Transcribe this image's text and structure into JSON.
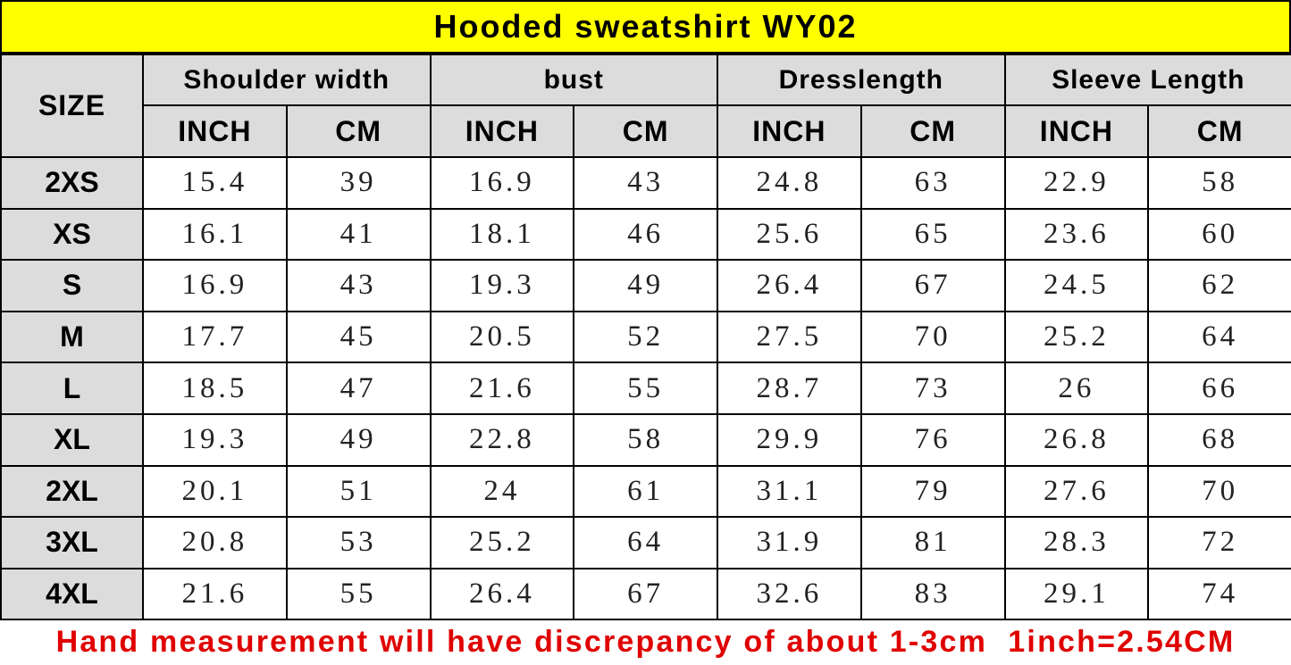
{
  "header": {
    "title": "Hooded sweatshirt  WY02"
  },
  "table": {
    "size_label": "SIZE",
    "groups": [
      {
        "name": "Shoulder width",
        "units": [
          "INCH",
          "CM"
        ]
      },
      {
        "name": "bust",
        "units": [
          "INCH",
          "CM"
        ]
      },
      {
        "name": "Dresslength",
        "units": [
          "INCH",
          "CM"
        ]
      },
      {
        "name": "Sleeve Length",
        "units": [
          "INCH",
          "CM"
        ]
      }
    ],
    "rows": [
      {
        "size": "2XS",
        "values": [
          15.4,
          39,
          16.9,
          43,
          24.8,
          63,
          22.9,
          58
        ]
      },
      {
        "size": "XS",
        "values": [
          16.1,
          41,
          18.1,
          46,
          25.6,
          65,
          23.6,
          60
        ]
      },
      {
        "size": "S",
        "values": [
          16.9,
          43,
          19.3,
          49,
          26.4,
          67,
          24.5,
          62
        ]
      },
      {
        "size": "M",
        "values": [
          17.7,
          45,
          20.5,
          52,
          27.5,
          70,
          25.2,
          64
        ]
      },
      {
        "size": "L",
        "values": [
          18.5,
          47,
          21.6,
          55,
          28.7,
          73,
          26,
          66
        ]
      },
      {
        "size": "XL",
        "values": [
          19.3,
          49,
          22.8,
          58,
          29.9,
          76,
          26.8,
          68
        ]
      },
      {
        "size": "2XL",
        "values": [
          20.1,
          51,
          24,
          61,
          31.1,
          79,
          27.6,
          70
        ]
      },
      {
        "size": "3XL",
        "values": [
          20.8,
          53,
          25.2,
          64,
          31.9,
          81,
          28.3,
          72
        ]
      },
      {
        "size": "4XL",
        "values": [
          21.6,
          55,
          26.4,
          67,
          32.6,
          83,
          29.1,
          74
        ]
      }
    ]
  },
  "footer": {
    "note": "Hand measurement will have discrepancy of about 1-3cm  1inch=2.54CM"
  }
}
